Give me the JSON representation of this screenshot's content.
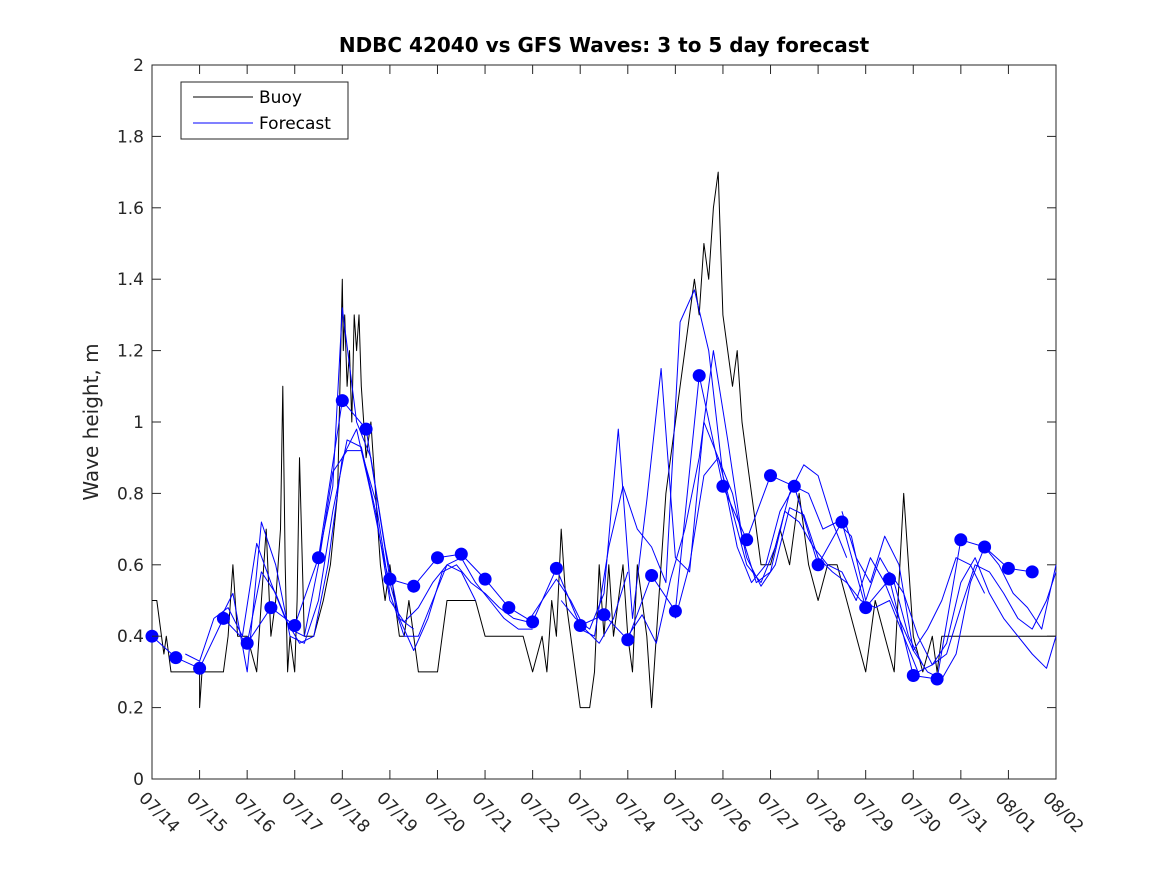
{
  "chart_data": {
    "type": "line",
    "title": "NDBC 42040 vs GFS Waves: 3 to 5 day forecast",
    "xlabel": "",
    "ylabel": "Wave height, m",
    "xlim": [
      "07/14",
      "08/02"
    ],
    "ylim": [
      0,
      2
    ],
    "x_tick_labels": [
      "07/14",
      "07/15",
      "07/16",
      "07/17",
      "07/18",
      "07/19",
      "07/20",
      "07/21",
      "07/22",
      "07/23",
      "07/24",
      "07/25",
      "07/26",
      "07/27",
      "07/28",
      "07/29",
      "07/30",
      "07/31",
      "08/01",
      "08/02"
    ],
    "y_tick_labels": [
      "0",
      "0.2",
      "0.4",
      "0.6",
      "0.8",
      "1",
      "1.2",
      "1.4",
      "1.6",
      "1.8",
      "2"
    ],
    "y_ticks": [
      0,
      0.2,
      0.4,
      0.6,
      0.8,
      1,
      1.2,
      1.4,
      1.6,
      1.8,
      2
    ],
    "grid": false,
    "legend_position": "top-left",
    "colors": {
      "buoy": "#000000",
      "forecast": "#0000ff"
    },
    "series": [
      {
        "name": "Buoy",
        "x_days": [
          0,
          0.1,
          0.2,
          0.25,
          0.3,
          0.4,
          0.5,
          0.6,
          0.8,
          1.0,
          1.0,
          1.05,
          1.1,
          1.5,
          1.6,
          1.65,
          1.7,
          1.8,
          2.0,
          2.2,
          2.3,
          2.4,
          2.5,
          2.6,
          2.7,
          2.75,
          2.8,
          2.85,
          2.9,
          3.0,
          3.05,
          3.1,
          3.2,
          3.4,
          3.6,
          3.75,
          3.9,
          4.0,
          4.02,
          4.05,
          4.1,
          4.15,
          4.2,
          4.25,
          4.3,
          4.35,
          4.4,
          4.5,
          4.6,
          4.7,
          4.75,
          4.8,
          4.9,
          5.0,
          5.1,
          5.2,
          5.3,
          5.4,
          5.5,
          5.6,
          5.8,
          6.0,
          6.1,
          6.2,
          6.5,
          6.8,
          7.0,
          7.2,
          7.5,
          7.8,
          8.0,
          8.2,
          8.3,
          8.4,
          8.5,
          8.6,
          8.7,
          8.8,
          9.0,
          9.2,
          9.3,
          9.4,
          9.5,
          9.6,
          9.7,
          9.8,
          9.9,
          10.0,
          10.1,
          10.2,
          10.3,
          10.4,
          10.5,
          10.6,
          10.7,
          10.8,
          10.9,
          11.0,
          11.1,
          11.2,
          11.3,
          11.4,
          11.5,
          11.6,
          11.7,
          11.8,
          11.9,
          12.0,
          12.1,
          12.2,
          12.3,
          12.4,
          12.5,
          12.6,
          12.7,
          12.8,
          12.9,
          13.0,
          13.2,
          13.4,
          13.6,
          13.8,
          14.0,
          14.2,
          14.4,
          14.6,
          14.8,
          15.0,
          15.2,
          15.4,
          15.6,
          15.8,
          16.0,
          16.2,
          16.4,
          16.5,
          16.6,
          16.7,
          16.8,
          16.9,
          17.0,
          17.2,
          17.4,
          17.6,
          17.8,
          18.0,
          18.2,
          18.4,
          18.6,
          18.8,
          19.0
        ],
        "values": [
          0.5,
          0.5,
          0.4,
          0.35,
          0.4,
          0.3,
          0.3,
          0.3,
          0.3,
          0.3,
          0.2,
          0.3,
          0.3,
          0.3,
          0.4,
          0.5,
          0.6,
          0.4,
          0.4,
          0.3,
          0.5,
          0.7,
          0.4,
          0.5,
          0.7,
          1.1,
          0.6,
          0.3,
          0.4,
          0.3,
          0.5,
          0.9,
          0.4,
          0.4,
          0.5,
          0.6,
          0.8,
          1.4,
          1.2,
          1.3,
          1.1,
          1.2,
          1.0,
          1.3,
          1.2,
          1.3,
          1.1,
          0.9,
          1.0,
          0.8,
          0.7,
          0.6,
          0.5,
          0.6,
          0.5,
          0.4,
          0.4,
          0.5,
          0.4,
          0.3,
          0.3,
          0.3,
          0.4,
          0.5,
          0.5,
          0.5,
          0.4,
          0.4,
          0.4,
          0.4,
          0.3,
          0.4,
          0.3,
          0.5,
          0.4,
          0.7,
          0.5,
          0.4,
          0.2,
          0.2,
          0.3,
          0.6,
          0.4,
          0.6,
          0.4,
          0.5,
          0.6,
          0.4,
          0.3,
          0.6,
          0.5,
          0.4,
          0.2,
          0.4,
          0.6,
          0.8,
          0.9,
          1.0,
          1.1,
          1.2,
          1.3,
          1.4,
          1.3,
          1.5,
          1.4,
          1.6,
          1.7,
          1.3,
          1.2,
          1.1,
          1.2,
          1.0,
          0.9,
          0.8,
          0.7,
          0.6,
          0.6,
          0.6,
          0.7,
          0.6,
          0.8,
          0.6,
          0.5,
          0.6,
          0.6,
          0.5,
          0.4,
          0.3,
          0.5,
          0.4,
          0.3,
          0.8,
          0.4,
          0.3,
          0.4,
          0.3,
          0.4,
          0.4,
          0.4,
          0.4,
          0.4,
          0.4,
          0.4,
          0.4,
          0.4,
          0.4,
          0.4,
          0.4,
          0.4,
          0.4,
          0.4
        ]
      },
      {
        "name": "Forecast",
        "x_days": [
          0,
          0.5,
          1.0,
          1.5,
          2.0,
          2.5,
          3.0,
          3.5,
          4.0,
          4.5,
          5.0,
          5.5,
          6.0,
          6.5,
          7.0,
          7.5,
          8.0,
          8.5,
          9.0,
          9.5,
          10.0,
          10.5,
          11.0,
          11.5,
          12.0,
          12.5,
          13.0,
          13.5,
          14.0,
          14.5,
          15.0,
          15.5,
          16.0,
          16.5,
          17.0,
          17.5,
          18.0,
          18.5
        ],
        "values": [
          0.4,
          0.34,
          0.31,
          0.45,
          0.38,
          0.48,
          0.43,
          0.62,
          1.06,
          0.98,
          0.56,
          0.54,
          0.62,
          0.63,
          0.56,
          0.48,
          0.44,
          0.59,
          0.43,
          0.46,
          0.39,
          0.57,
          0.47,
          1.13,
          0.82,
          0.67,
          0.85,
          0.82,
          0.6,
          0.72,
          0.48,
          0.56,
          0.29,
          0.28,
          0.67,
          0.65,
          0.59,
          0.58
        ]
      },
      {
        "name": "",
        "x_days": [
          0.7,
          1.0,
          1.3,
          1.6,
          1.9,
          2.2,
          2.5,
          2.8,
          3.1,
          3.4,
          3.7,
          4.0,
          4.3,
          4.6,
          4.9,
          5.2,
          5.5
        ],
        "values": [
          0.35,
          0.33,
          0.45,
          0.48,
          0.4,
          0.66,
          0.55,
          0.45,
          0.38,
          0.4,
          0.6,
          0.9,
          0.98,
          0.8,
          0.6,
          0.45,
          0.42
        ]
      },
      {
        "name": "",
        "x_days": [
          1.4,
          1.7,
          2.0,
          2.3,
          2.6,
          2.9,
          3.2,
          3.5,
          3.8,
          4.1,
          4.4,
          4.7,
          5.0,
          5.3,
          5.6,
          5.9,
          6.2,
          6.5,
          6.8
        ],
        "values": [
          0.44,
          0.52,
          0.3,
          0.72,
          0.6,
          0.4,
          0.38,
          0.5,
          0.75,
          0.95,
          0.93,
          0.75,
          0.5,
          0.44,
          0.48,
          0.55,
          0.6,
          0.58,
          0.5
        ]
      },
      {
        "name": "",
        "x_days": [
          2.0,
          2.3,
          2.6,
          2.9,
          3.2,
          3.5,
          3.8,
          4.1,
          4.4,
          4.7,
          5.0,
          5.3,
          5.6,
          5.9,
          6.2,
          6.5,
          6.8,
          7.1,
          7.4,
          7.7,
          8.0
        ],
        "values": [
          0.38,
          0.58,
          0.52,
          0.42,
          0.4,
          0.6,
          0.86,
          0.92,
          0.92,
          0.78,
          0.52,
          0.4,
          0.4,
          0.5,
          0.6,
          0.62,
          0.55,
          0.5,
          0.45,
          0.42,
          0.42
        ]
      },
      {
        "name": "",
        "x_days": [
          3.5,
          3.8,
          4.0,
          4.3,
          4.6,
          4.9,
          5.2,
          5.5,
          5.8,
          6.1,
          6.4,
          6.7,
          7.0,
          7.3,
          7.6,
          7.9,
          8.2,
          8.5,
          8.8,
          9.1,
          9.4,
          9.7,
          10.0
        ],
        "values": [
          0.62,
          0.82,
          1.32,
          1.0,
          0.9,
          0.65,
          0.45,
          0.36,
          0.45,
          0.58,
          0.6,
          0.55,
          0.52,
          0.48,
          0.45,
          0.44,
          0.5,
          0.56,
          0.5,
          0.42,
          0.38,
          0.45,
          0.58
        ]
      },
      {
        "name": "",
        "x_days": [
          8.6,
          8.9,
          9.2,
          9.5,
          9.8,
          10.1,
          10.4,
          10.7,
          11.0,
          11.3,
          11.6,
          11.9,
          12.2,
          12.5,
          12.8,
          13.1,
          13.4,
          13.7,
          14.0,
          14.3,
          14.6
        ],
        "values": [
          0.5,
          0.45,
          0.42,
          0.52,
          0.98,
          0.45,
          0.78,
          1.15,
          0.62,
          0.58,
          1.0,
          0.9,
          0.75,
          0.6,
          0.55,
          0.65,
          0.8,
          0.88,
          0.85,
          0.72,
          0.62
        ]
      },
      {
        "name": "",
        "x_days": [
          9.0,
          9.3,
          9.6,
          9.9,
          10.2,
          10.5,
          10.8,
          11.1,
          11.4,
          11.7,
          12.0,
          12.3,
          12.6,
          12.9,
          13.2,
          13.5,
          13.8,
          14.1,
          14.4,
          14.7,
          15.0,
          15.3,
          15.6,
          15.9,
          16.2
        ],
        "values": [
          0.42,
          0.4,
          0.65,
          0.82,
          0.7,
          0.65,
          0.55,
          1.28,
          1.37,
          1.2,
          0.85,
          0.65,
          0.55,
          0.6,
          0.75,
          0.82,
          0.8,
          0.7,
          0.72,
          0.68,
          0.5,
          0.62,
          0.55,
          0.4,
          0.32
        ]
      },
      {
        "name": "",
        "x_days": [
          10.0,
          10.3,
          10.6,
          10.9,
          11.2,
          11.5,
          11.8,
          12.1,
          12.4,
          12.7,
          13.0,
          13.3,
          13.6,
          13.9,
          14.2,
          14.5,
          14.8,
          15.1,
          15.4,
          15.7,
          16.0,
          16.3,
          16.6,
          16.9,
          17.2,
          17.5
        ],
        "values": [
          0.4,
          0.46,
          0.38,
          0.56,
          0.7,
          0.9,
          1.2,
          0.95,
          0.68,
          0.55,
          0.58,
          0.75,
          0.72,
          0.65,
          0.6,
          0.58,
          0.5,
          0.62,
          0.55,
          0.45,
          0.36,
          0.42,
          0.5,
          0.62,
          0.6,
          0.52
        ]
      },
      {
        "name": "",
        "x_days": [
          11.0,
          11.3,
          11.6,
          11.9,
          12.2,
          12.5,
          12.8,
          13.1,
          13.4,
          13.7,
          14.0,
          14.3,
          14.6,
          14.9,
          15.2,
          15.5,
          15.8,
          16.1,
          16.4,
          16.7,
          17.0,
          17.3,
          17.6,
          17.9,
          18.2,
          18.5,
          18.8,
          19.0
        ],
        "values": [
          0.45,
          0.6,
          0.85,
          0.9,
          0.8,
          0.62,
          0.54,
          0.6,
          0.76,
          0.74,
          0.62,
          0.58,
          0.55,
          0.5,
          0.48,
          0.5,
          0.4,
          0.3,
          0.32,
          0.38,
          0.55,
          0.62,
          0.52,
          0.45,
          0.4,
          0.35,
          0.31,
          0.4
        ]
      },
      {
        "name": "",
        "x_days": [
          14.5,
          14.8,
          15.1,
          15.4,
          15.7,
          16.0,
          16.3,
          16.6,
          16.9,
          17.2,
          17.5,
          17.8,
          18.1,
          18.4,
          18.7,
          19.0
        ],
        "values": [
          0.75,
          0.62,
          0.55,
          0.68,
          0.6,
          0.36,
          0.3,
          0.28,
          0.35,
          0.55,
          0.65,
          0.6,
          0.52,
          0.48,
          0.42,
          0.6
        ]
      },
      {
        "name": "",
        "x_days": [
          15.5,
          15.8,
          16.1,
          16.4,
          16.7,
          17.0,
          17.3,
          17.6,
          17.9,
          18.2,
          18.5,
          18.8,
          19.0
        ],
        "values": [
          0.58,
          0.52,
          0.4,
          0.32,
          0.35,
          0.48,
          0.6,
          0.58,
          0.52,
          0.45,
          0.42,
          0.5,
          0.58
        ]
      }
    ]
  }
}
